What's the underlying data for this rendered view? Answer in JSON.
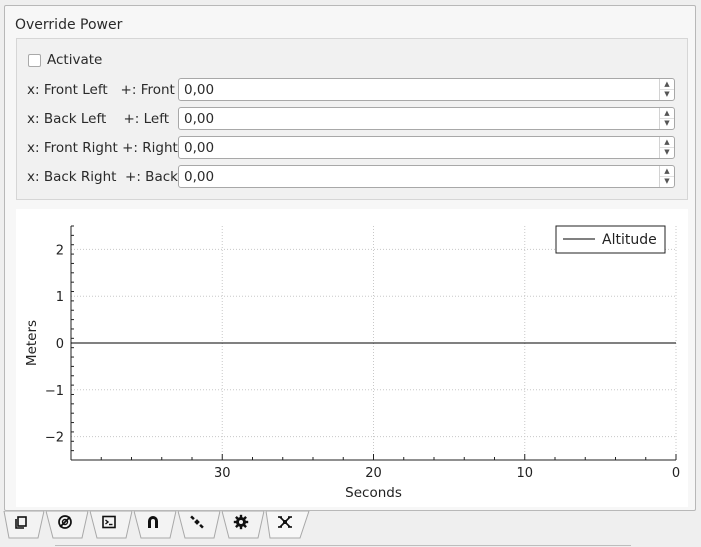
{
  "group": {
    "title": "Override Power",
    "activate_label": "Activate",
    "activate_checked": false,
    "rows": [
      {
        "label": "x: Front Left   +: Front",
        "value": "0,00"
      },
      {
        "label": "x: Back Left    +: Left",
        "value": "0,00"
      },
      {
        "label": "x: Front Right +: Right",
        "value": "0,00"
      },
      {
        "label": "x: Back Right  +: Back",
        "value": "0,00"
      }
    ]
  },
  "chart_data": {
    "type": "line",
    "xlabel": "Seconds",
    "ylabel": "Meters",
    "xlim": [
      40,
      0
    ],
    "ylim": [
      -2.5,
      2.5
    ],
    "x_ticks": [
      "30",
      "20",
      "10",
      "0"
    ],
    "y_ticks": [
      "2",
      "1",
      "0",
      "−1",
      "−2"
    ],
    "grid": true,
    "legend_position": "top-right",
    "series": [
      {
        "name": "Altitude",
        "color": "#000000",
        "x": [
          40,
          0
        ],
        "y": [
          0,
          0
        ]
      }
    ]
  },
  "tabs": [
    {
      "icon": "pages-icon",
      "active": false
    },
    {
      "icon": "no-signal-icon",
      "active": false
    },
    {
      "icon": "terminal-icon",
      "active": false
    },
    {
      "icon": "magnet-icon",
      "active": false
    },
    {
      "icon": "satellite-icon",
      "active": false
    },
    {
      "icon": "gear-icon",
      "active": false
    },
    {
      "icon": "drone-icon",
      "active": true
    }
  ]
}
